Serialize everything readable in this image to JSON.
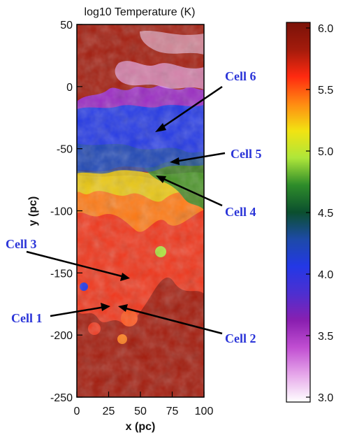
{
  "title": "log10 Temperature (K)",
  "x_axis": {
    "label": "x (pc)",
    "ticks": [
      "0",
      "25",
      "50",
      "75",
      "100"
    ]
  },
  "y_axis": {
    "label": "y (pc)",
    "ticks": [
      "50",
      "0",
      "-50",
      "-100",
      "-150",
      "-200",
      "-250"
    ]
  },
  "colorbar": {
    "ticks": [
      "6.0",
      "5.5",
      "5.0",
      "4.5",
      "4.0",
      "3.5",
      "3.0"
    ],
    "colors": [
      "#7a1208",
      "#a31b0c",
      "#ff2a10",
      "#ff8a12",
      "#f2e312",
      "#aee63a",
      "#2e8c2a",
      "#0b4f2e",
      "#1d4aa8",
      "#2338e6",
      "#4d2fd0",
      "#8a1fb0",
      "#c14fd2",
      "#e6a8ea",
      "#ffffff"
    ]
  },
  "annotations": [
    {
      "label": "Cell 6"
    },
    {
      "label": "Cell 5"
    },
    {
      "label": "Cell 4"
    },
    {
      "label": "Cell 3"
    },
    {
      "label": "Cell 2"
    },
    {
      "label": "Cell 1"
    }
  ]
}
